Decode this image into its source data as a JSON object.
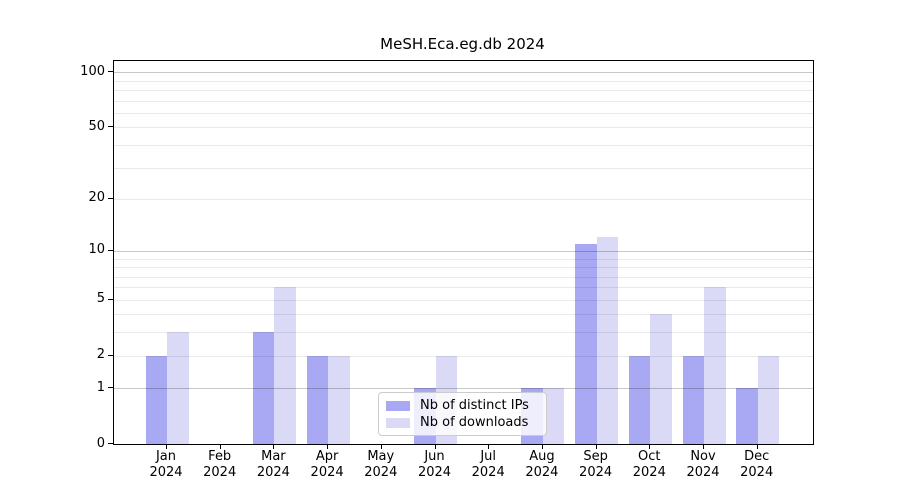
{
  "title": "MeSH.Eca.eg.db 2024",
  "legend": {
    "items": [
      {
        "label": "Nb of distinct IPs",
        "color": "#a9a9f3"
      },
      {
        "label": "Nb of downloads",
        "color": "#dadaf6"
      }
    ]
  },
  "chart_data": {
    "type": "bar",
    "title": "MeSH.Eca.eg.db 2024",
    "categories": [
      "Jan",
      "Feb",
      "Mar",
      "Apr",
      "May",
      "Jun",
      "Jul",
      "Aug",
      "Sep",
      "Oct",
      "Nov",
      "Dec"
    ],
    "category_year": "2024",
    "series": [
      {
        "name": "Nb of distinct IPs",
        "color": "#a9a9f3",
        "values": [
          2,
          0,
          3,
          2,
          0,
          1,
          0,
          1,
          11,
          2,
          2,
          1
        ]
      },
      {
        "name": "Nb of downloads",
        "color": "#dadaf6",
        "values": [
          3,
          0,
          6,
          2,
          0,
          2,
          0,
          1,
          12,
          4,
          6,
          2
        ]
      }
    ],
    "ylabel": "",
    "xlabel": "",
    "y_ticks": [
      0,
      1,
      2,
      5,
      10,
      20,
      50,
      100
    ],
    "y_minor_gridlines": [
      2,
      3,
      4,
      5,
      6,
      7,
      8,
      9,
      20,
      30,
      40,
      50,
      60,
      70,
      80,
      90
    ],
    "y_major_gridlines": [
      1,
      10,
      100
    ],
    "y_scale": "log10(1+v)",
    "ylim": [
      0,
      114
    ],
    "grid": "horizontal",
    "legend_position": "inside-bottom-center"
  }
}
